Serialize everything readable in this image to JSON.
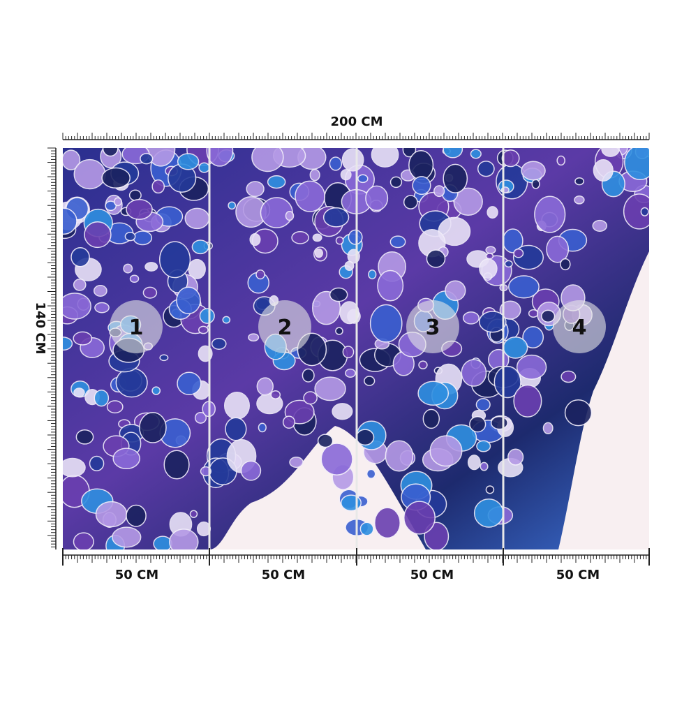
{
  "width_label": "200 CM",
  "height_label": "140 CM",
  "panels": [
    {
      "number": "1",
      "width_label": "50 CM"
    },
    {
      "number": "2",
      "width_label": "50 CM"
    },
    {
      "number": "3",
      "width_label": "50 CM"
    },
    {
      "number": "4",
      "width_label": "50 CM"
    }
  ]
}
